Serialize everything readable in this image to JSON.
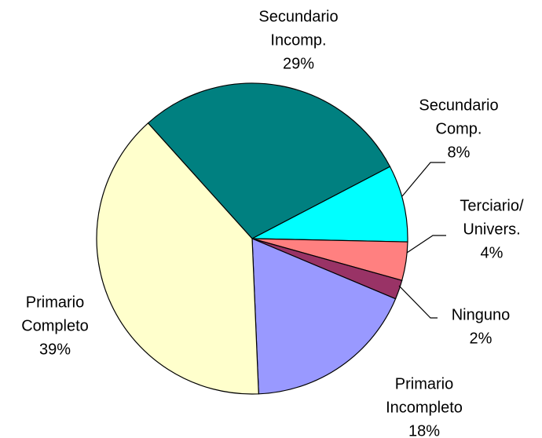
{
  "chart_data": {
    "type": "pie",
    "categories": [
      [
        "Secundario",
        "Incomp."
      ],
      [
        "Secundario",
        "Comp."
      ],
      [
        "Terciario/",
        "Univers."
      ],
      [
        "Ninguno"
      ],
      [
        "Primario",
        "Incompleto"
      ],
      [
        "Primario",
        "Completo"
      ]
    ],
    "values": [
      29,
      8,
      4,
      2,
      18,
      39
    ],
    "value_labels": [
      "29%",
      "8%",
      "4%",
      "2%",
      "18%",
      "39%"
    ],
    "colors": [
      "#008080",
      "#00ffff",
      "#ff8080",
      "#993366",
      "#9999ff",
      "#ffffcc"
    ]
  }
}
